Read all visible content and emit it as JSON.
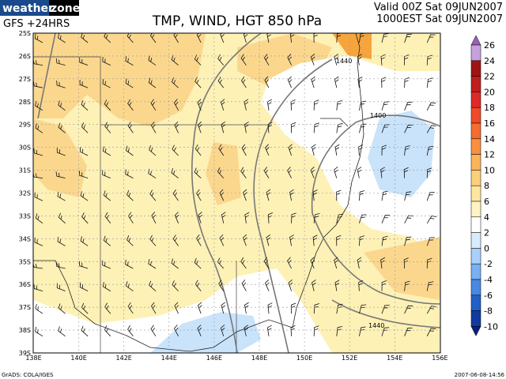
{
  "header": {
    "logo": {
      "left": "weather",
      "right": "zone"
    },
    "model": "GFS +24HRS",
    "title": "TMP, WIND, HGT 850 hPa",
    "valid": "Valid 00Z Sat 09JUN2007",
    "local": "1000EST Sat 09JUN2007"
  },
  "map": {
    "latitudes": [
      "25S",
      "26S",
      "27S",
      "28S",
      "29S",
      "30S",
      "31S",
      "32S",
      "33S",
      "34S",
      "35S",
      "36S",
      "37S",
      "38S",
      "39S"
    ],
    "longitudes": [
      "138E",
      "140E",
      "142E",
      "144E",
      "146E",
      "148E",
      "150E",
      "152E",
      "154E",
      "156E"
    ],
    "contour_labels": [
      "1440",
      "1400",
      "1440"
    ]
  },
  "colorbar": {
    "labels": [
      26,
      24,
      22,
      20,
      18,
      16,
      14,
      12,
      10,
      8,
      6,
      4,
      2,
      0,
      -2,
      -4,
      -6,
      -8,
      -10
    ]
  },
  "footer": {
    "left": "GrADS: COLA/IGES",
    "right": "2007-06-08-14:56"
  }
}
